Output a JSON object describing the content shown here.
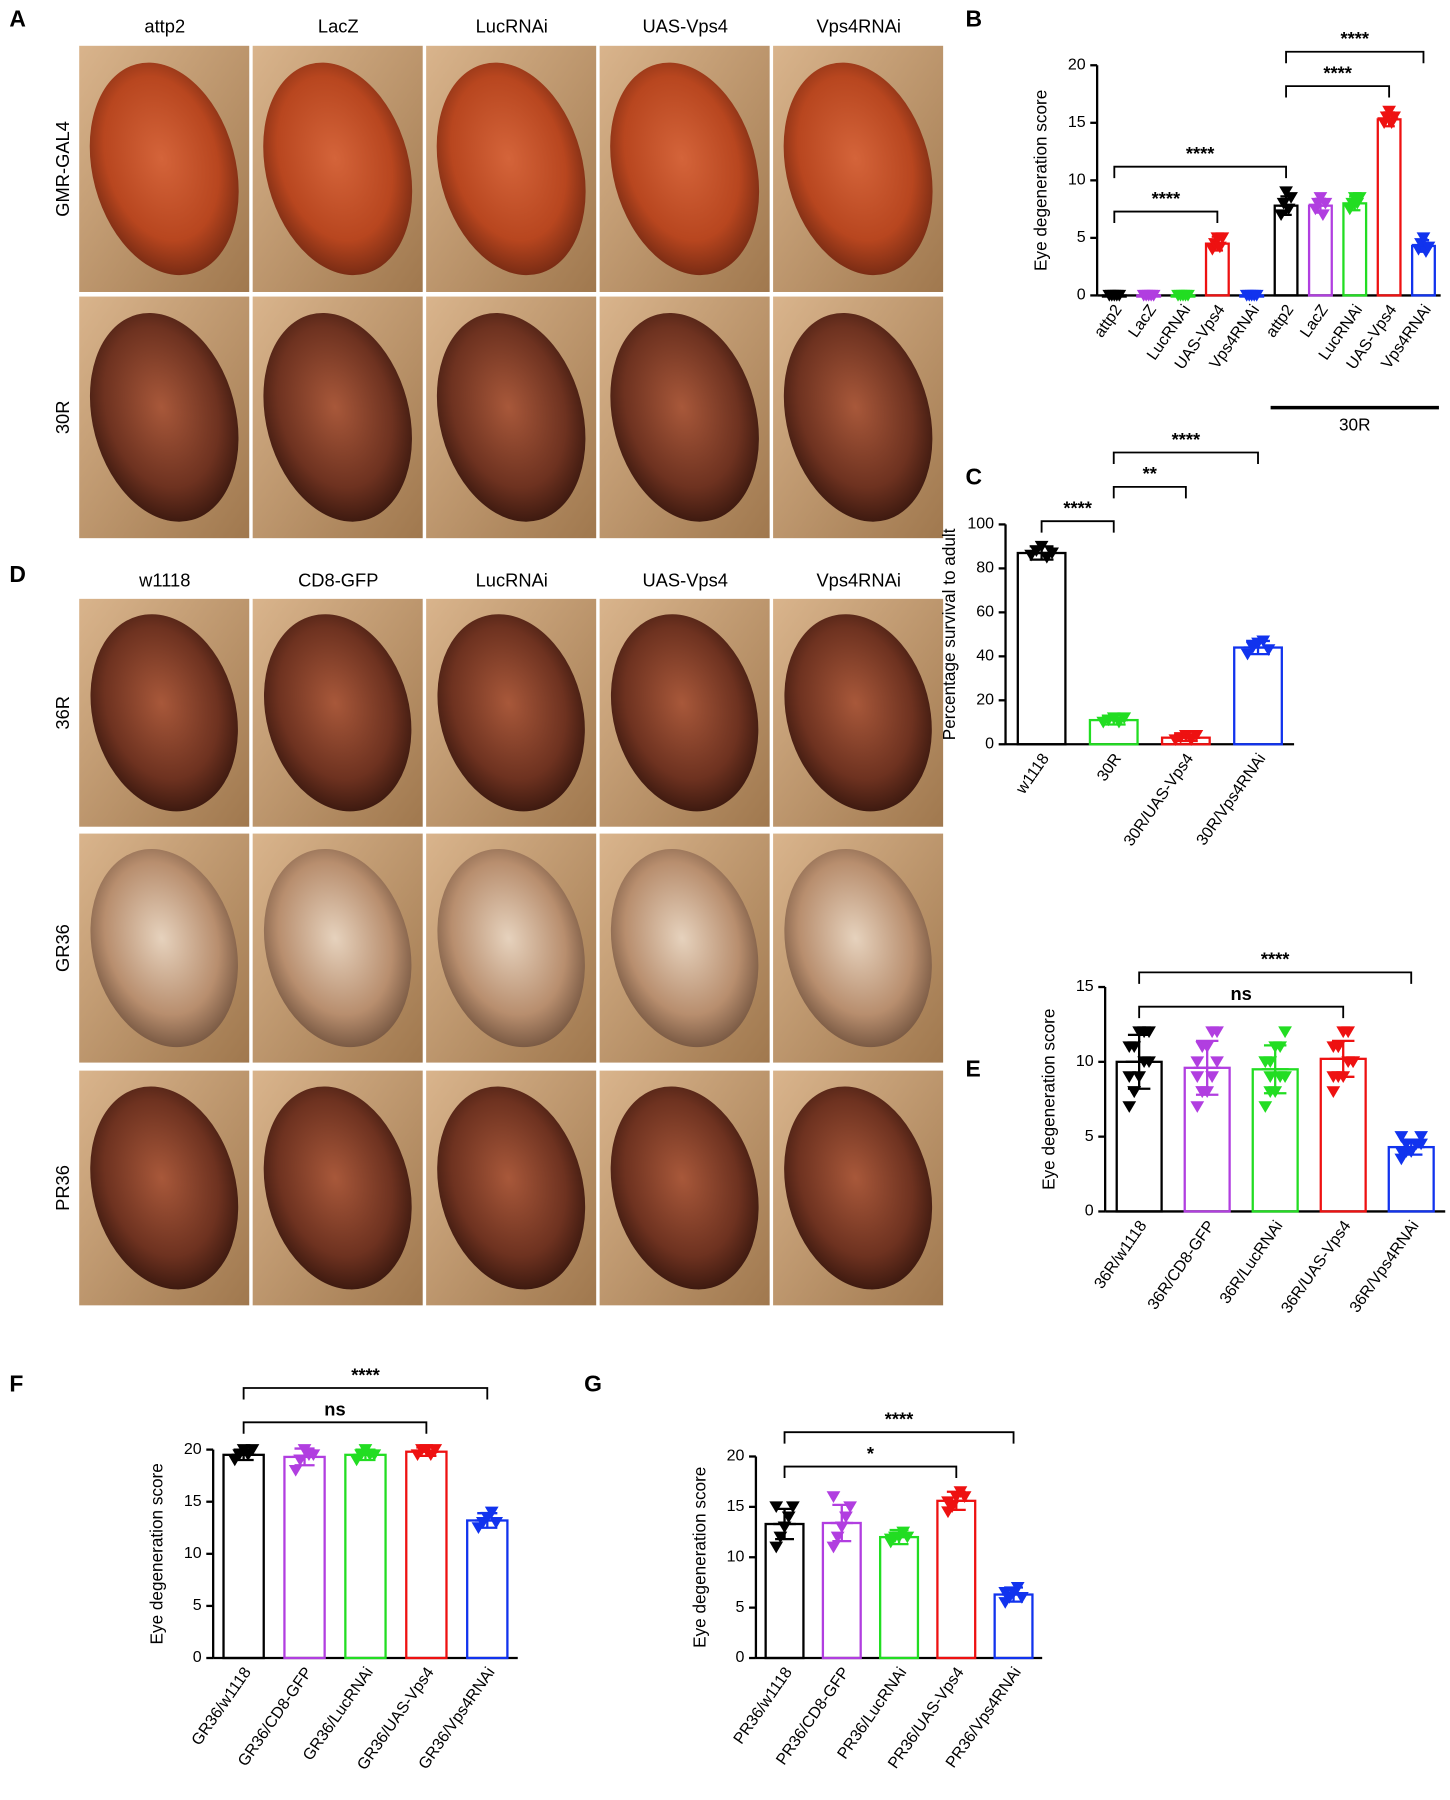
{
  "panels": [
    "A",
    "B",
    "C",
    "D",
    "E",
    "F",
    "G"
  ],
  "photo_grid_a": {
    "columns": [
      "attp2",
      "LacZ",
      "LucRNAi",
      "UAS-Vps4",
      "Vps4RNAi"
    ],
    "rows": [
      "GMR-GAL4",
      "30R"
    ]
  },
  "photo_grid_d": {
    "columns": [
      "w1118",
      "CD8-GFP",
      "LucRNAi",
      "UAS-Vps4",
      "Vps4RNAi"
    ],
    "rows": [
      "36R",
      "GR36",
      "PR36"
    ]
  },
  "chart_data": [
    {
      "type": "bar",
      "y_label": "Eye degeneration score",
      "categories": [
        "attp2",
        "LacZ",
        "LucRNAi",
        "UAS-Vps4",
        "Vps4RNAi",
        "attp2",
        "LacZ",
        "LucRNAi",
        "UAS-Vps4",
        "Vps4RNAi"
      ],
      "values": [
        0,
        0,
        0,
        4.5,
        0,
        7.8,
        7.8,
        8,
        15.3,
        4.3
      ],
      "errors": [
        0.1,
        0.1,
        0.1,
        0.6,
        0.1,
        0.8,
        0.6,
        0.6,
        0.6,
        0.5
      ],
      "points": [
        [
          0,
          0,
          0,
          0,
          0
        ],
        [
          0,
          0,
          0,
          0,
          0
        ],
        [
          0,
          0,
          0,
          0,
          0
        ],
        [
          4,
          4.5,
          5,
          4.2,
          5
        ],
        [
          0,
          0,
          0,
          0,
          0
        ],
        [
          7,
          8,
          9,
          7.5,
          8.5
        ],
        [
          7.5,
          8,
          8.5,
          7,
          8
        ],
        [
          7.5,
          8,
          8.5,
          8,
          8.5
        ],
        [
          15,
          15.5,
          16,
          15,
          15.5
        ],
        [
          4,
          4.5,
          5,
          3.8,
          4.2
        ]
      ],
      "colors": [
        "#000000",
        "#b13ee0",
        "#22dd22",
        "#ee1111",
        "#1133ee",
        "#000000",
        "#b13ee0",
        "#22dd22",
        "#ee1111",
        "#1133ee"
      ],
      "ylim": [
        0,
        20
      ],
      "yticks": [
        0,
        5,
        10,
        15,
        20
      ],
      "group": {
        "label": "30R",
        "from": 5,
        "to": 9
      },
      "annotations": [
        {
          "from": 0,
          "to": 3,
          "label": "****"
        },
        {
          "from": 0,
          "to": 5,
          "label": "****"
        },
        {
          "from": 5,
          "to": 8,
          "label": "****"
        },
        {
          "from": 5,
          "to": 9,
          "label": "****"
        }
      ]
    },
    {
      "type": "bar",
      "y_label": "Percentage survival to adult",
      "categories": [
        "w1118",
        "30R",
        "30R/UAS-Vps4",
        "30R/Vps4RNAi"
      ],
      "values": [
        87,
        11,
        3,
        44
      ],
      "errors": [
        3,
        2,
        1.5,
        3
      ],
      "points": [
        [
          86,
          88,
          90,
          85,
          87
        ],
        [
          10,
          11,
          12,
          10,
          12
        ],
        [
          2,
          3,
          4,
          2,
          4
        ],
        [
          41,
          44,
          46,
          47,
          43
        ]
      ],
      "colors": [
        "#000000",
        "#22dd22",
        "#ee1111",
        "#1133ee"
      ],
      "ylim": [
        0,
        100
      ],
      "yticks": [
        0,
        20,
        40,
        60,
        80,
        100
      ],
      "annotations": [
        {
          "from": 0,
          "to": 1,
          "label": "****"
        },
        {
          "from": 1,
          "to": 2,
          "label": "**"
        },
        {
          "from": 1,
          "to": 3,
          "label": "****"
        }
      ]
    },
    {
      "type": "bar",
      "y_label": "Eye degeneration score",
      "categories": [
        "36R/w1118",
        "36R/CD8-GFP",
        "36R/LucRNAi",
        "36R/UAS-Vps4",
        "36R/Vps4RNAi"
      ],
      "values": [
        10,
        9.6,
        9.5,
        10.2,
        4.3
      ],
      "errors": [
        1.8,
        1.8,
        1.6,
        1.2,
        0.5
      ],
      "points": [
        [
          7,
          8,
          9,
          10,
          10,
          11,
          11,
          12,
          12,
          12,
          9,
          8
        ],
        [
          7,
          8,
          8,
          9,
          10,
          10,
          11,
          11,
          12,
          12,
          9,
          8
        ],
        [
          7,
          8,
          8,
          9,
          9,
          10,
          10,
          11,
          11,
          12,
          10,
          9
        ],
        [
          8,
          9,
          9,
          10,
          10,
          11,
          11,
          12,
          12,
          10,
          9,
          11
        ],
        [
          3.5,
          4,
          4,
          4.5,
          4.5,
          5,
          4,
          4,
          4.5,
          5,
          4,
          4.5
        ]
      ],
      "colors": [
        "#000000",
        "#b13ee0",
        "#22dd22",
        "#ee1111",
        "#1133ee"
      ],
      "ylim": [
        0,
        15
      ],
      "yticks": [
        0,
        5,
        10,
        15
      ],
      "annotations": [
        {
          "from": 0,
          "to": 3,
          "label": "ns"
        },
        {
          "from": 0,
          "to": 4,
          "label": "****"
        }
      ]
    },
    {
      "type": "bar",
      "y_label": "Eye degeneration score",
      "categories": [
        "GR36/w1118",
        "GR36/CD8-GFP",
        "GR36/LucRNAi",
        "GR36/UAS-Vps4",
        "GR36/Vps4RNAi"
      ],
      "values": [
        19.5,
        19.3,
        19.5,
        19.8,
        13.2
      ],
      "errors": [
        0.5,
        0.8,
        0.5,
        0.4,
        0.7
      ],
      "points": [
        [
          19,
          19.5,
          20,
          19.5,
          20
        ],
        [
          18,
          19,
          20,
          19.5,
          19.5
        ],
        [
          19,
          19.5,
          20,
          19.5,
          19.5
        ],
        [
          19.5,
          20,
          20,
          19.5,
          20
        ],
        [
          12.5,
          13,
          13.5,
          14,
          13
        ]
      ],
      "colors": [
        "#000000",
        "#b13ee0",
        "#22dd22",
        "#ee1111",
        "#1133ee"
      ],
      "ylim": [
        0,
        20
      ],
      "yticks": [
        0,
        5,
        10,
        15,
        20
      ],
      "annotations": [
        {
          "from": 0,
          "to": 3,
          "label": "ns"
        },
        {
          "from": 0,
          "to": 4,
          "label": "****"
        }
      ]
    },
    {
      "type": "bar",
      "y_label": "Eye degeneration score",
      "categories": [
        "PR36/w1118",
        "PR36/CD8-GFP",
        "PR36/LucRNAi",
        "PR36/UAS-Vps4",
        "PR36/Vps4RNAi"
      ],
      "values": [
        13.3,
        13.4,
        12,
        15.6,
        6.3
      ],
      "errors": [
        1.5,
        1.8,
        0.7,
        0.9,
        0.7
      ],
      "points": [
        [
          11,
          12,
          13,
          14,
          15,
          15
        ],
        [
          11,
          12,
          13,
          14,
          15,
          16
        ],
        [
          11.5,
          12,
          12,
          12.5,
          12,
          11.8
        ],
        [
          14.5,
          15,
          16,
          16.5,
          16,
          15.5
        ],
        [
          5.5,
          6,
          6.5,
          7,
          6,
          6.5
        ]
      ],
      "colors": [
        "#000000",
        "#b13ee0",
        "#22dd22",
        "#ee1111",
        "#1133ee"
      ],
      "ylim": [
        0,
        20
      ],
      "yticks": [
        0,
        5,
        10,
        15,
        20
      ],
      "annotations": [
        {
          "from": 0,
          "to": 3,
          "label": "*"
        },
        {
          "from": 0,
          "to": 4,
          "label": "****"
        }
      ]
    }
  ]
}
